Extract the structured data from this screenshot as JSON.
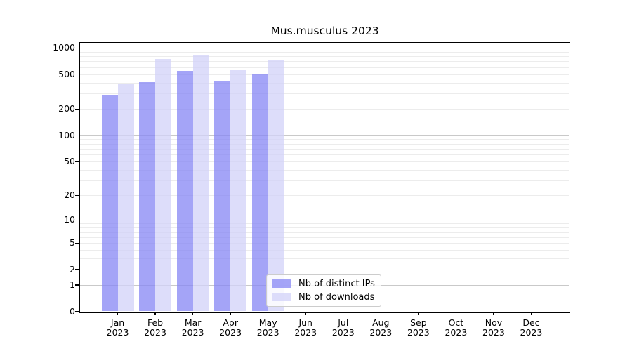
{
  "chart_data": {
    "type": "bar",
    "title": "Mus.musculus 2023",
    "yscale": "symlog",
    "ylim": [
      0,
      1151
    ],
    "grid": "horizontal only, minor+major",
    "legend_position": "inside bottom-center",
    "categories": [
      {
        "month": "Jan",
        "year": "2023"
      },
      {
        "month": "Feb",
        "year": "2023"
      },
      {
        "month": "Mar",
        "year": "2023"
      },
      {
        "month": "Apr",
        "year": "2023"
      },
      {
        "month": "May",
        "year": "2023"
      },
      {
        "month": "Jun",
        "year": "2023"
      },
      {
        "month": "Jul",
        "year": "2023"
      },
      {
        "month": "Aug",
        "year": "2023"
      },
      {
        "month": "Sep",
        "year": "2023"
      },
      {
        "month": "Oct",
        "year": "2023"
      },
      {
        "month": "Nov",
        "year": "2023"
      },
      {
        "month": "Dec",
        "year": "2023"
      }
    ],
    "series": [
      {
        "name": "Nb of distinct IPs",
        "color": "rgba(134,134,244,0.75)",
        "values": [
          290,
          408,
          546,
          412,
          510,
          null,
          null,
          null,
          null,
          null,
          null,
          null
        ]
      },
      {
        "name": "Nb of downloads",
        "color": "rgba(209,209,248,0.75)",
        "values": [
          388,
          746,
          838,
          557,
          737,
          null,
          null,
          null,
          null,
          null,
          null,
          null
        ]
      }
    ],
    "yticks": [
      {
        "v": 0,
        "label": "0"
      },
      {
        "v": 1,
        "label": "1"
      },
      {
        "v": 2,
        "label": "2"
      },
      {
        "v": 5,
        "label": "5"
      },
      {
        "v": 10,
        "label": "10"
      },
      {
        "v": 20,
        "label": "20"
      },
      {
        "v": 50,
        "label": "50"
      },
      {
        "v": 100,
        "label": "100"
      },
      {
        "v": 200,
        "label": "200"
      },
      {
        "v": 500,
        "label": "500"
      },
      {
        "v": 1000,
        "label": "1000"
      }
    ],
    "gridlines": {
      "major": [
        1,
        10,
        100,
        1000
      ],
      "minor": [
        2,
        3,
        4,
        5,
        6,
        7,
        8,
        9,
        20,
        30,
        40,
        50,
        60,
        70,
        80,
        90,
        200,
        300,
        400,
        500,
        600,
        700,
        800,
        900
      ]
    }
  }
}
